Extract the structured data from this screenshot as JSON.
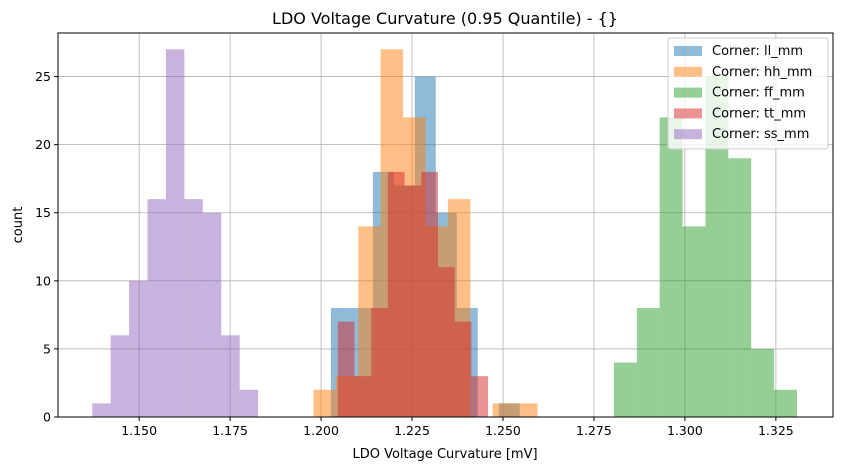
{
  "chart_data": {
    "type": "histogram",
    "title": "LDO Voltage Curvature (0.95 Quantile) - {}",
    "xlabel": "LDO Voltage Curvature [mV]",
    "ylabel": "count",
    "xlim": [
      1.1277,
      1.3407
    ],
    "ylim": [
      0,
      28.2
    ],
    "xticks": [
      "1.150",
      "1.175",
      "1.200",
      "1.225",
      "1.250",
      "1.275",
      "1.300",
      "1.325"
    ],
    "xtick_values": [
      1.15,
      1.175,
      1.2,
      1.225,
      1.25,
      1.275,
      1.3,
      1.325
    ],
    "yticks": [
      "0",
      "5",
      "10",
      "15",
      "20",
      "25"
    ],
    "ytick_values": [
      0,
      5,
      10,
      15,
      20,
      25
    ],
    "grid": true,
    "legend_position": "top-right",
    "alpha": 0.5,
    "series": [
      {
        "name": "Corner: ll_mm",
        "color": "#1f77b4",
        "range": [
          1.2027,
          1.2546
        ],
        "counts": [
          8,
          8,
          18,
          17,
          25,
          15,
          8,
          0,
          1
        ]
      },
      {
        "name": "Corner: hh_mm",
        "color": "#ff7f0e",
        "range": [
          1.1979,
          1.2595
        ],
        "counts": [
          2,
          3,
          14,
          27,
          22,
          14,
          16,
          0,
          1,
          1
        ]
      },
      {
        "name": "Corner: ff_mm",
        "color": "#2ca02c",
        "range": [
          1.2805,
          1.3308
        ],
        "counts": [
          4,
          8,
          22,
          14,
          25,
          19,
          5,
          2
        ]
      },
      {
        "name": "Corner: tt_mm",
        "color": "#d62728",
        "range": [
          1.2046,
          1.2459
        ],
        "counts": [
          7,
          3,
          8,
          18,
          17,
          18,
          11,
          7,
          3
        ]
      },
      {
        "name": "Corner: ss_mm",
        "color": "#9467bd",
        "range": [
          1.1371,
          1.1827
        ],
        "counts": [
          1,
          6,
          10,
          16,
          27,
          16,
          15,
          6,
          2
        ]
      }
    ]
  }
}
